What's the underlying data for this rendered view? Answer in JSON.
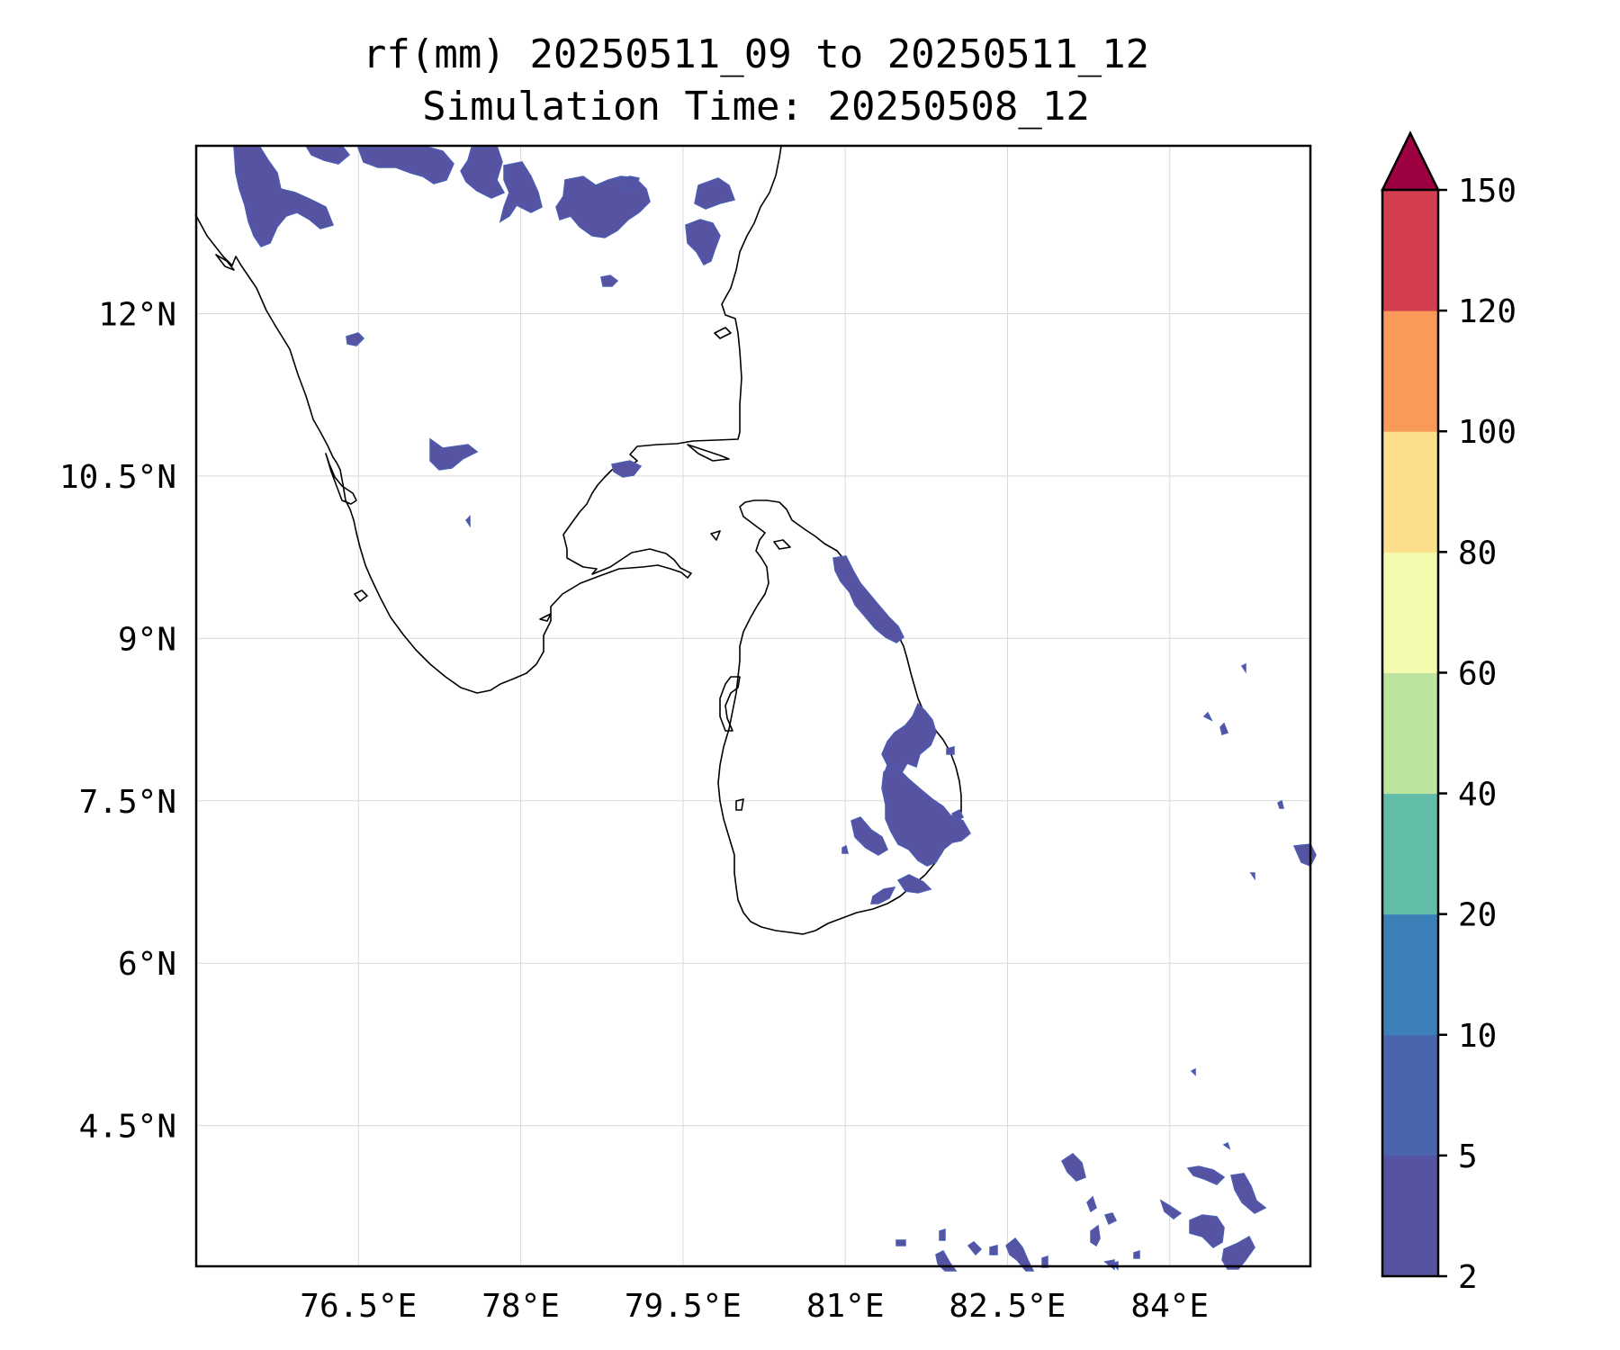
{
  "title": {
    "line1": "rf(mm) 20250511_09 to 20250511_12",
    "line2": "Simulation Time: 20250508_12"
  },
  "map": {
    "lon_range": [
      75.0,
      85.3
    ],
    "lat_range": [
      3.2,
      13.55
    ],
    "x_ticks": [
      {
        "value": 76.5,
        "label": "76.5°E"
      },
      {
        "value": 78.0,
        "label": "78°E"
      },
      {
        "value": 79.5,
        "label": "79.5°E"
      },
      {
        "value": 81.0,
        "label": "81°E"
      },
      {
        "value": 82.5,
        "label": "82.5°E"
      },
      {
        "value": 84.0,
        "label": "84°E"
      }
    ],
    "y_ticks": [
      {
        "value": 12.0,
        "label": "12°N"
      },
      {
        "value": 10.5,
        "label": "10.5°N"
      },
      {
        "value": 9.0,
        "label": "9°N"
      },
      {
        "value": 7.5,
        "label": "7.5°N"
      },
      {
        "value": 6.0,
        "label": "6°N"
      },
      {
        "value": 4.5,
        "label": "4.5°N"
      }
    ],
    "gridlines": true,
    "coastline_color": "#000000",
    "rain_color": "#5753a3"
  },
  "colorbar": {
    "levels": [
      {
        "value": 2,
        "label": "2"
      },
      {
        "value": 5,
        "label": "5"
      },
      {
        "value": 10,
        "label": "10"
      },
      {
        "value": 20,
        "label": "20"
      },
      {
        "value": 40,
        "label": "40"
      },
      {
        "value": 60,
        "label": "60"
      },
      {
        "value": 80,
        "label": "80"
      },
      {
        "value": 100,
        "label": "100"
      },
      {
        "value": 120,
        "label": "120"
      },
      {
        "value": 150,
        "label": "150"
      }
    ],
    "colors": [
      "#5753a3",
      "#4a64ad",
      "#3b80b9",
      "#62bda8",
      "#bce49f",
      "#f4fbaf",
      "#fbdf8a",
      "#f99a59",
      "#d43e50"
    ],
    "extend_color": "#9e0142",
    "extend": "max"
  }
}
